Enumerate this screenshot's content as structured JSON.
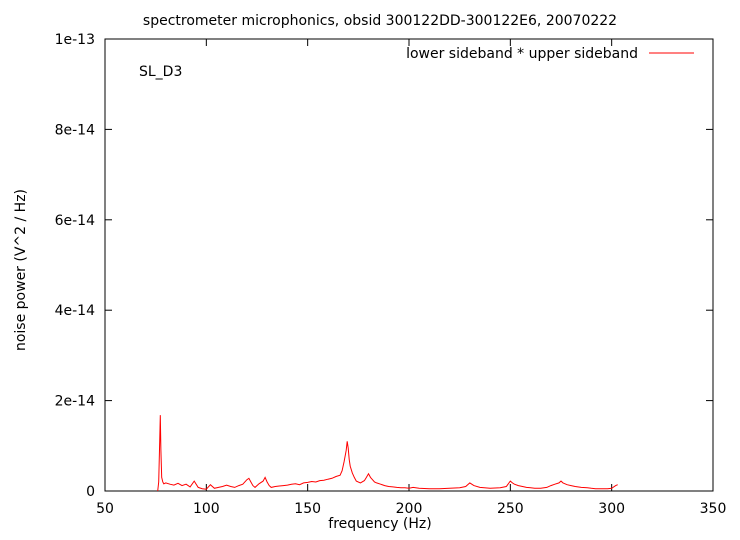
{
  "chart_data": {
    "type": "line",
    "title": "spectrometer microphonics, obsid 300122DD-300122E6, 20070222",
    "xlabel": "frequency (Hz)",
    "ylabel": "noise power (V^2 / Hz)",
    "annotation": "SL_D3",
    "xlim": [
      50,
      350
    ],
    "ylim": [
      0,
      1e-13
    ],
    "xticks": [
      50,
      100,
      150,
      200,
      250,
      300,
      350
    ],
    "xtick_labels": [
      "50",
      "100",
      "150",
      "200",
      "250",
      "300",
      "350"
    ],
    "yticks": [
      0,
      2e-14,
      4e-14,
      6e-14,
      8e-14,
      1e-13
    ],
    "ytick_labels": [
      "0",
      "2e-14",
      "4e-14",
      "6e-14",
      "8e-14",
      "1e-13"
    ],
    "grid": false,
    "legend_position": "top-right",
    "series": [
      {
        "name": "lower sideband * upper sideband",
        "color": "#ff0000",
        "x": [
          76,
          76.5,
          77,
          77.3,
          77.6,
          78,
          78.5,
          79,
          80,
          82,
          84,
          86,
          88,
          90,
          92,
          94,
          96,
          98,
          100,
          102,
          104,
          106,
          108,
          110,
          112,
          114,
          116,
          118,
          120,
          121,
          122,
          123,
          124,
          126,
          128,
          129,
          130,
          131,
          132,
          134,
          136,
          138,
          140,
          142,
          144,
          146,
          148,
          150,
          152,
          154,
          156,
          158,
          160,
          162,
          164,
          166,
          167,
          168,
          169,
          169.5,
          170,
          170.5,
          171,
          172,
          173,
          174,
          176,
          178,
          179,
          180,
          181,
          182,
          183,
          184,
          186,
          188,
          190,
          192,
          194,
          196,
          198,
          200,
          202,
          205,
          210,
          215,
          220,
          225,
          228,
          230,
          232,
          235,
          240,
          245,
          248,
          250,
          251,
          252,
          254,
          256,
          258,
          260,
          262,
          265,
          268,
          270,
          272,
          274,
          275,
          276,
          278,
          280,
          282,
          285,
          288,
          290,
          292,
          295,
          298,
          300,
          302,
          303
        ],
        "y": [
          0,
          2e-15,
          1.1e-14,
          1.68e-14,
          9e-15,
          3e-15,
          2e-15,
          1.6e-15,
          1.8e-15,
          1.5e-15,
          1.3e-15,
          1.7e-15,
          1.2e-15,
          1.5e-15,
          9e-16,
          2.2e-15,
          8e-16,
          5e-16,
          4e-16,
          1.4e-15,
          6e-16,
          8e-16,
          1e-15,
          1.3e-15,
          1e-15,
          8e-16,
          1.2e-15,
          1.5e-15,
          2.5e-15,
          2.8e-15,
          2e-15,
          1.2e-15,
          8e-16,
          1.6e-15,
          2.2e-15,
          3e-15,
          2e-15,
          1.2e-15,
          8e-16,
          1e-15,
          1.1e-15,
          1.2e-15,
          1.3e-15,
          1.5e-15,
          1.6e-15,
          1.4e-15,
          1.8e-15,
          1.9e-15,
          2.1e-15,
          2e-15,
          2.3e-15,
          2.4e-15,
          2.6e-15,
          2.8e-15,
          3.2e-15,
          3.5e-15,
          4.5e-15,
          6.5e-15,
          9e-15,
          1.1e-14,
          9.5e-15,
          7e-15,
          5.5e-15,
          4e-15,
          3e-15,
          2.2e-15,
          1.8e-15,
          2.3e-15,
          3e-15,
          3.8e-15,
          3e-15,
          2.5e-15,
          2e-15,
          1.8e-15,
          1.5e-15,
          1.2e-15,
          1e-15,
          9e-16,
          8e-16,
          7e-16,
          7e-16,
          6e-16,
          8e-16,
          6e-16,
          5e-16,
          5e-16,
          6e-16,
          7e-16,
          1e-15,
          1.8e-15,
          1.2e-15,
          8e-16,
          6e-16,
          7e-16,
          1e-15,
          2.2e-15,
          1.8e-15,
          1.5e-15,
          1.2e-15,
          1e-15,
          8e-16,
          7e-16,
          6e-16,
          6e-16,
          8e-16,
          1.2e-15,
          1.5e-15,
          1.8e-15,
          2.2e-15,
          1.8e-15,
          1.4e-15,
          1.2e-15,
          1e-15,
          8e-16,
          7e-16,
          6e-16,
          5e-16,
          5e-16,
          5e-16,
          6e-16,
          1.2e-15,
          1.4e-15
        ]
      }
    ]
  }
}
